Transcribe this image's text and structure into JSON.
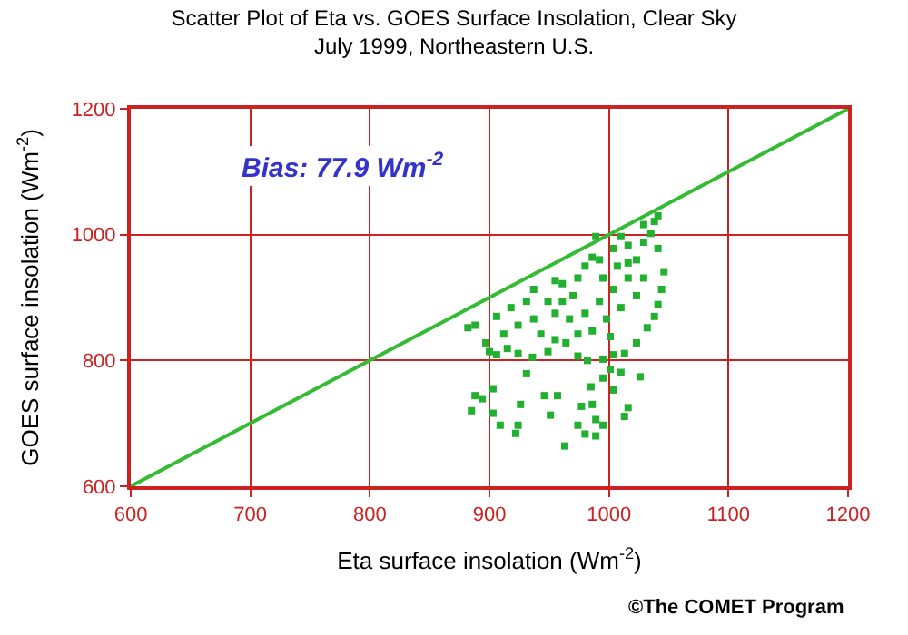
{
  "chart_data": {
    "type": "scatter",
    "title": "Scatter Plot of Eta vs. GOES Surface Insolation, Clear Sky\nJuly 1999, Northeastern U.S.",
    "xlabel": "Eta surface insolation (Wm$^{-2}$)",
    "ylabel": "GOES surface insolation (Wm$^{-2}$)",
    "annotations": [
      "Bias: 77.9 Wm$^{-2}$",
      "©The COMET Program"
    ],
    "xlim": [
      600,
      1200
    ],
    "ylim": [
      600,
      1200
    ],
    "xticks": [
      600,
      700,
      800,
      900,
      1000,
      1100,
      1200
    ],
    "yticks": [
      600,
      800,
      1000,
      1200
    ],
    "grid": true,
    "legend": false,
    "marker": "square",
    "series": [
      {
        "color": "#22b030",
        "x": [
          1041,
          1029,
          1010,
          986,
          955,
          931,
          906,
          885,
          888,
          894,
          903,
          903,
          909,
          924,
          922,
          926,
          931,
          946,
          951,
          957,
          963,
          974,
          977,
          980,
          989,
          989,
          995,
          986,
          985,
          995,
          1004,
          1013,
          1016,
          1026,
          1010,
          1001,
          882,
          888,
          897,
          900,
          906,
          915,
          924,
          936,
          949,
          955,
          964,
          974,
          982,
          995,
          1004,
          1013,
          1023,
          1032,
          1038,
          1041,
          1044,
          1046,
          1041,
          918,
          937,
          949,
          961,
          974,
          980,
          992,
          1004,
          1016,
          1023,
          1029,
          1035,
          1038,
          1016,
          1004,
          992,
          980,
          967,
          955,
          937,
          924,
          998,
          1010,
          1023,
          1029,
          986,
          1001,
          974,
          943,
          912,
          995,
          970,
          989,
          1007,
          1016,
          961
        ],
        "values": [
          1030,
          1016,
          997,
          964,
          927,
          894,
          870,
          720,
          744,
          739,
          755,
          716,
          697,
          697,
          684,
          730,
          779,
          744,
          713,
          744,
          664,
          697,
          727,
          683,
          706,
          680,
          697,
          730,
          758,
          772,
          753,
          711,
          725,
          774,
          781,
          786,
          852,
          856,
          828,
          814,
          809,
          819,
          811,
          805,
          814,
          833,
          828,
          807,
          800,
          802,
          809,
          811,
          828,
          852,
          870,
          889,
          913,
          941,
          978,
          884,
          913,
          894,
          922,
          931,
          950,
          960,
          978,
          983,
          960,
          988,
          1002,
          1021,
          931,
          913,
          894,
          875,
          866,
          875,
          866,
          856,
          866,
          884,
          903,
          931,
          847,
          838,
          842,
          842,
          842,
          931,
          903,
          997,
          950,
          955,
          894
        ]
      },
      {
        "type": "line",
        "color": "#33bb33",
        "marker": "none",
        "x": [
          600,
          1200
        ],
        "values": [
          600,
          1200
        ]
      }
    ]
  }
}
